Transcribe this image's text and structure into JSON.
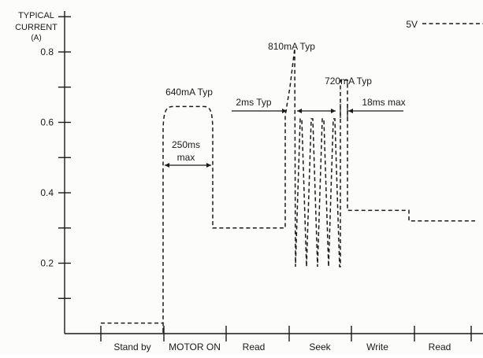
{
  "chart_data": {
    "type": "line",
    "ylabel_lines": [
      "TYPICAL",
      "CURRENT",
      "(A)"
    ],
    "y_ticks": [
      0.2,
      0.4,
      0.6,
      0.8
    ],
    "y_tick_labels": [
      "0.2",
      "0.4",
      "0.6",
      "0.8"
    ],
    "ylim": [
      0,
      0.9
    ],
    "grid": false,
    "phases": [
      "Stand by",
      "MOTOR ON",
      "Read",
      "Seek",
      "Write",
      "Read"
    ],
    "series": [
      {
        "name": "5V",
        "style": "dashed",
        "levels": {
          "stand_by": 0.03,
          "motor_on_peak": 0.64,
          "read": 0.3,
          "seek_peak": 0.81,
          "seek_pulse_peak": 0.61,
          "seek_pulse_low": 0.19,
          "write_peak": 0.72,
          "write": 0.35,
          "read_after": 0.32
        }
      }
    ],
    "annotations": {
      "motor_peak": "640mA Typ",
      "motor_duration": "250ms",
      "motor_duration_unit": "max",
      "seek_peak": "810mA Typ",
      "seek_interval": "2ms Typ",
      "write_peak": "720mA Typ",
      "settle_time": "18ms max"
    }
  }
}
